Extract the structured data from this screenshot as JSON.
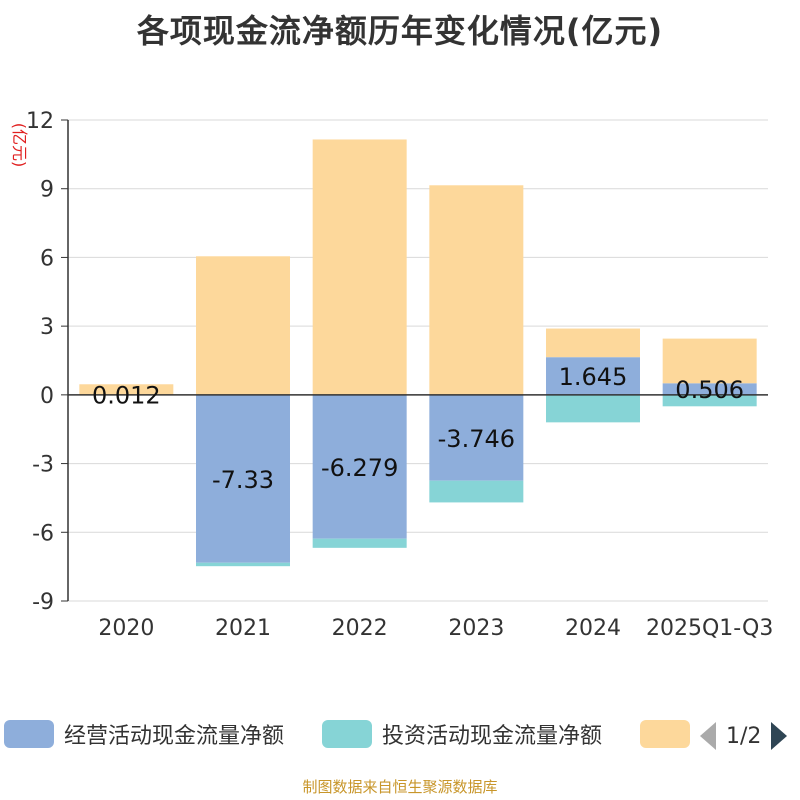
{
  "chart_data": {
    "type": "bar",
    "stacked": true,
    "title": "各项现金流净额历年变化情况(亿元)",
    "ylabel": "(亿元)",
    "xlabel": "",
    "ylim": [
      -9,
      12
    ],
    "yticks": [
      12,
      9,
      6,
      3,
      0,
      -3,
      -6,
      -9
    ],
    "ytick_labels": [
      "12",
      "9",
      "6",
      "3",
      "0",
      "-3",
      "-6",
      "-9"
    ],
    "categories": [
      "2020",
      "2021",
      "2022",
      "2023",
      "2024",
      "2025Q1-Q3"
    ],
    "series": [
      {
        "name": "经营活动现金流量净额",
        "color": "#8eaedb",
        "values": [
          0.012,
          -7.33,
          -6.279,
          -3.746,
          1.645,
          0.506
        ],
        "labels": [
          "0.012",
          "-7.33",
          "-6.279",
          "-3.746",
          "1.645",
          "0.506"
        ]
      },
      {
        "name": "投资活动现金流量净额",
        "color": "#86d4d6",
        "values": [
          0,
          -0.15,
          -0.4,
          -0.95,
          -1.2,
          -0.5
        ]
      },
      {
        "name": "",
        "color": "#fdd89b",
        "values": [
          0.45,
          6.05,
          11.15,
          9.15,
          1.25,
          1.95
        ]
      }
    ],
    "grid": true,
    "legend_position": "bottom"
  },
  "legend": {
    "items": [
      "经营活动现金流量净额",
      "投资活动现金流量净额",
      ""
    ],
    "page": "1/2"
  },
  "footer": "制图数据来自恒生聚源数据库"
}
